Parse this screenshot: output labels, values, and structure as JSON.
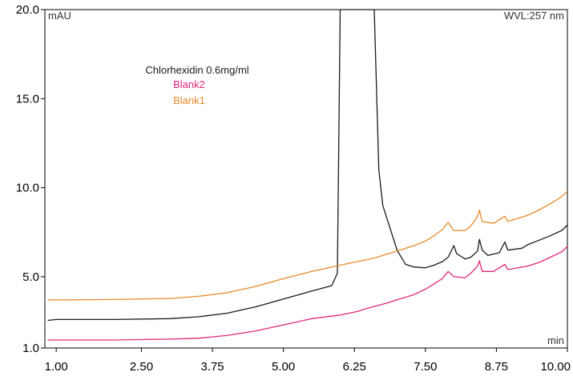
{
  "chart_data": {
    "type": "line",
    "title": "",
    "ylabel": "mAU",
    "xlabel": "min",
    "wavelength_label": "WVL:257 nm",
    "xlim": [
      0.8,
      10.0
    ],
    "ylim": [
      1.0,
      20.0
    ],
    "x_ticks": [
      1.0,
      2.5,
      3.75,
      5.0,
      6.25,
      7.5,
      8.75,
      10.0
    ],
    "x_tick_labels": [
      "1.00",
      "2.50",
      "3.75",
      "5.00",
      "6.25",
      "7.50",
      "8.75",
      "10.00"
    ],
    "y_ticks": [
      1.0,
      5.0,
      10.0,
      15.0,
      20.0
    ],
    "y_tick_labels": [
      "1.0",
      "5.0",
      "10.0",
      "15.0",
      "20.0"
    ],
    "grid": false,
    "legend_position": "top-center",
    "series": [
      {
        "name": "Chlorhexidin 0.6mg/ml",
        "color": "#1a1a1a",
        "points": [
          [
            0.85,
            2.55
          ],
          [
            1.0,
            2.6
          ],
          [
            2.0,
            2.6
          ],
          [
            3.0,
            2.65
          ],
          [
            3.5,
            2.75
          ],
          [
            4.0,
            2.95
          ],
          [
            4.5,
            3.3
          ],
          [
            5.0,
            3.75
          ],
          [
            5.5,
            4.2
          ],
          [
            5.85,
            4.5
          ],
          [
            5.95,
            5.2
          ],
          [
            6.0,
            20.0
          ],
          [
            6.6,
            20.0
          ],
          [
            6.68,
            11.0
          ],
          [
            6.75,
            9.0
          ],
          [
            6.85,
            8.0
          ],
          [
            7.0,
            6.5
          ],
          [
            7.15,
            5.7
          ],
          [
            7.3,
            5.55
          ],
          [
            7.5,
            5.5
          ],
          [
            7.65,
            5.65
          ],
          [
            7.8,
            5.85
          ],
          [
            7.9,
            6.1
          ],
          [
            8.0,
            6.75
          ],
          [
            8.05,
            6.3
          ],
          [
            8.2,
            6.0
          ],
          [
            8.3,
            6.1
          ],
          [
            8.42,
            6.45
          ],
          [
            8.45,
            7.1
          ],
          [
            8.5,
            6.5
          ],
          [
            8.6,
            6.2
          ],
          [
            8.8,
            6.35
          ],
          [
            8.9,
            6.95
          ],
          [
            8.95,
            6.5
          ],
          [
            9.2,
            6.6
          ],
          [
            9.3,
            6.8
          ],
          [
            9.5,
            7.05
          ],
          [
            9.7,
            7.3
          ],
          [
            9.9,
            7.6
          ],
          [
            10.0,
            7.9
          ]
        ]
      },
      {
        "name": "Blank2",
        "color": "#e0267a",
        "points": [
          [
            0.85,
            1.45
          ],
          [
            1.0,
            1.45
          ],
          [
            2.0,
            1.45
          ],
          [
            3.0,
            1.5
          ],
          [
            3.5,
            1.55
          ],
          [
            4.0,
            1.7
          ],
          [
            4.5,
            1.95
          ],
          [
            5.0,
            2.3
          ],
          [
            5.5,
            2.65
          ],
          [
            6.0,
            2.85
          ],
          [
            6.3,
            3.05
          ],
          [
            6.5,
            3.25
          ],
          [
            6.8,
            3.5
          ],
          [
            7.0,
            3.7
          ],
          [
            7.3,
            4.0
          ],
          [
            7.5,
            4.3
          ],
          [
            7.65,
            4.6
          ],
          [
            7.8,
            4.9
          ],
          [
            7.9,
            5.3
          ],
          [
            8.0,
            5.0
          ],
          [
            8.2,
            4.95
          ],
          [
            8.3,
            5.2
          ],
          [
            8.42,
            5.6
          ],
          [
            8.45,
            5.9
          ],
          [
            8.5,
            5.3
          ],
          [
            8.7,
            5.3
          ],
          [
            8.9,
            5.7
          ],
          [
            8.95,
            5.4
          ],
          [
            9.3,
            5.6
          ],
          [
            9.5,
            5.8
          ],
          [
            9.7,
            6.1
          ],
          [
            9.9,
            6.4
          ],
          [
            10.0,
            6.7
          ]
        ]
      },
      {
        "name": "Blank1",
        "color": "#e8892a",
        "points": [
          [
            0.85,
            3.7
          ],
          [
            1.0,
            3.7
          ],
          [
            2.0,
            3.72
          ],
          [
            3.0,
            3.78
          ],
          [
            3.5,
            3.9
          ],
          [
            4.0,
            4.1
          ],
          [
            4.5,
            4.45
          ],
          [
            5.0,
            4.9
          ],
          [
            5.5,
            5.3
          ],
          [
            6.0,
            5.65
          ],
          [
            6.3,
            5.85
          ],
          [
            6.6,
            6.05
          ],
          [
            6.8,
            6.25
          ],
          [
            7.0,
            6.45
          ],
          [
            7.3,
            6.75
          ],
          [
            7.5,
            7.0
          ],
          [
            7.65,
            7.3
          ],
          [
            7.8,
            7.65
          ],
          [
            7.9,
            8.05
          ],
          [
            8.0,
            7.6
          ],
          [
            8.2,
            7.6
          ],
          [
            8.3,
            7.85
          ],
          [
            8.42,
            8.4
          ],
          [
            8.45,
            8.75
          ],
          [
            8.5,
            8.1
          ],
          [
            8.7,
            8.0
          ],
          [
            8.9,
            8.4
          ],
          [
            8.95,
            8.1
          ],
          [
            9.3,
            8.45
          ],
          [
            9.5,
            8.75
          ],
          [
            9.7,
            9.1
          ],
          [
            9.9,
            9.5
          ],
          [
            10.0,
            9.8
          ]
        ]
      }
    ]
  }
}
